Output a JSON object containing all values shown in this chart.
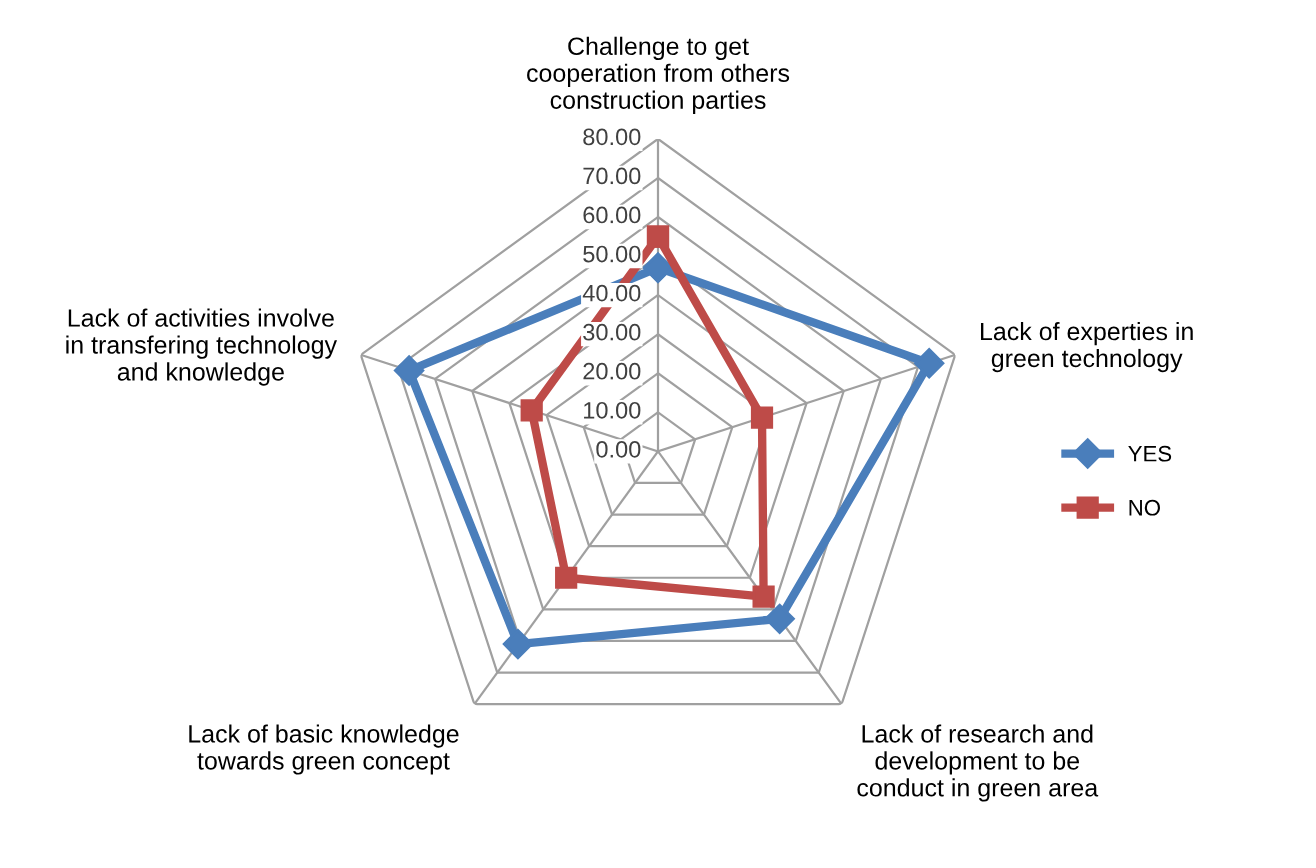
{
  "chart_data": {
    "type": "radar",
    "categories": [
      "Challenge to get\ncooperation from others\nconstruction parties",
      "Lack of experties in\ngreen technology",
      "Lack of research and\ndevelopment to be\nconduct in green area",
      "Lack of basic knowledge\ntowards green concept",
      "Lack of activities involve\nin transfering technology\nand knowledge"
    ],
    "series": [
      {
        "name": "YES",
        "color": "#4a7ebb",
        "marker": "diamond",
        "values": [
          47,
          73,
          53,
          61,
          67
        ]
      },
      {
        "name": "NO",
        "color": "#be4b48",
        "marker": "square",
        "values": [
          55,
          28,
          46,
          40,
          34
        ]
      }
    ],
    "ylim": [
      0,
      80
    ],
    "yticks": [
      {
        "value": 0,
        "label": "0.00"
      },
      {
        "value": 10,
        "label": "10.00"
      },
      {
        "value": 20,
        "label": "20.00"
      },
      {
        "value": 30,
        "label": "30.00"
      },
      {
        "value": 40,
        "label": "40.00"
      },
      {
        "value": 50,
        "label": "50.00"
      },
      {
        "value": 60,
        "label": "60.00"
      },
      {
        "value": 70,
        "label": "70.00"
      },
      {
        "value": 80,
        "label": "80.00"
      }
    ],
    "grid": true,
    "legend": "right"
  }
}
